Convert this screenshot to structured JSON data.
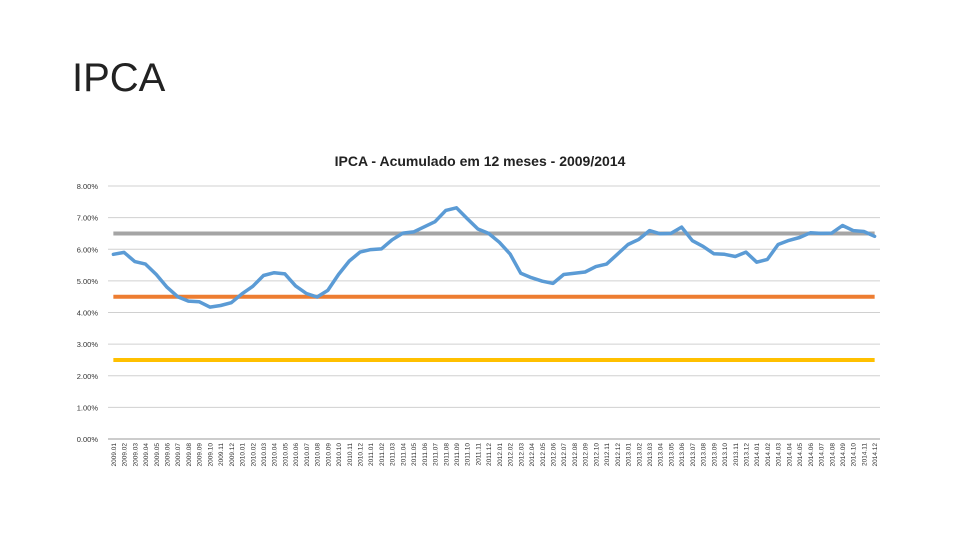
{
  "slide": {
    "title": "IPCA"
  },
  "chart_data": {
    "type": "line",
    "title": "IPCA - Acumulado em 12 meses - 2009/2014",
    "xlabel": "",
    "ylabel": "",
    "ylim": [
      0,
      8
    ],
    "yticks": [
      "0.00%",
      "1.00%",
      "2.00%",
      "3.00%",
      "4.00%",
      "5.00%",
      "6.00%",
      "7.00%",
      "8.00%"
    ],
    "grid": true,
    "categories": [
      "2009.01",
      "2009.02",
      "2009.03",
      "2009.04",
      "2009.05",
      "2009.06",
      "2009.07",
      "2009.08",
      "2009.09",
      "2009.10",
      "2009.11",
      "2009.12",
      "2010.01",
      "2010.02",
      "2010.03",
      "2010.04",
      "2010.05",
      "2010.06",
      "2010.07",
      "2010.08",
      "2010.09",
      "2010.10",
      "2010.11",
      "2010.12",
      "2011.01",
      "2011.02",
      "2011.03",
      "2011.04",
      "2011.05",
      "2011.06",
      "2011.07",
      "2011.08",
      "2011.09",
      "2011.10",
      "2011.11",
      "2011.12",
      "2012.01",
      "2012.02",
      "2012.03",
      "2012.04",
      "2012.05",
      "2012.06",
      "2012.07",
      "2012.08",
      "2012.09",
      "2012.10",
      "2012.11",
      "2012.12",
      "2013.01",
      "2013.02",
      "2013.03",
      "2013.04",
      "2013.05",
      "2013.06",
      "2013.07",
      "2013.08",
      "2013.09",
      "2013.10",
      "2013.11",
      "2013.12",
      "2014.01",
      "2014.02",
      "2014.03",
      "2014.04",
      "2014.05",
      "2014.06",
      "2014.07",
      "2014.08",
      "2014.09",
      "2014.10",
      "2014.11",
      "2014.12"
    ],
    "series": [
      {
        "color": "#5b9bd5",
        "values": [
          5.84,
          5.9,
          5.61,
          5.53,
          5.2,
          4.8,
          4.5,
          4.36,
          4.34,
          4.17,
          4.22,
          4.31,
          4.59,
          4.83,
          5.17,
          5.26,
          5.22,
          4.84,
          4.6,
          4.49,
          4.7,
          5.2,
          5.63,
          5.91,
          5.99,
          6.01,
          6.3,
          6.51,
          6.55,
          6.71,
          6.87,
          7.23,
          7.31,
          6.97,
          6.64,
          6.5,
          6.22,
          5.85,
          5.24,
          5.1,
          4.99,
          4.92,
          5.2,
          5.24,
          5.28,
          5.45,
          5.53,
          5.84,
          6.15,
          6.31,
          6.59,
          6.49,
          6.5,
          6.7,
          6.27,
          6.09,
          5.86,
          5.84,
          5.77,
          5.91,
          5.59,
          5.68,
          6.15,
          6.28,
          6.37,
          6.52,
          6.5,
          6.51,
          6.75,
          6.59,
          6.56,
          6.41
        ]
      },
      {
        "color": "#a5a5a5",
        "values_constant": 6.5
      },
      {
        "color": "#ed7d31",
        "values_constant": 4.5
      },
      {
        "color": "#ffc000",
        "values_constant": 2.5
      }
    ]
  }
}
